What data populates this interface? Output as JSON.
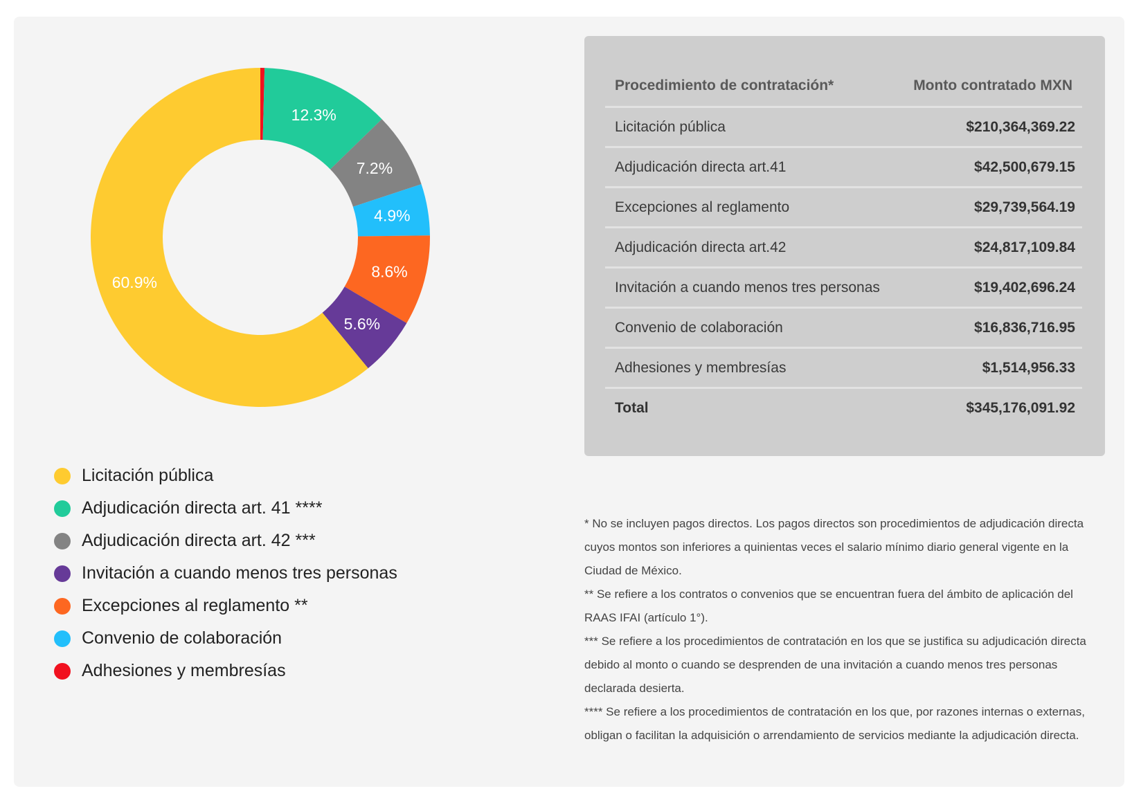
{
  "chart_data": {
    "type": "pie",
    "subtype": "donut",
    "title": "",
    "slices": [
      {
        "label": "Adhesiones y membresías",
        "value": 0.4,
        "color": "#f1111f",
        "show_label": false
      },
      {
        "label": "Adjudicación directa art. 41 ****",
        "value": 12.3,
        "color": "#21cb9a",
        "show_label": true
      },
      {
        "label": "Adjudicación directa art. 42 ***",
        "value": 7.2,
        "color": "#838383",
        "show_label": true
      },
      {
        "label": "Convenio de colaboración",
        "value": 4.9,
        "color": "#22bffb",
        "show_label": true
      },
      {
        "label": "Excepciones al reglamento **",
        "value": 8.6,
        "color": "#fd6721",
        "show_label": true
      },
      {
        "label": "Invitación a cuando menos tres personas",
        "value": 5.6,
        "color": "#663a98",
        "show_label": true
      },
      {
        "label": "Licitación pública",
        "value": 60.9,
        "color": "#fecb30",
        "show_label": true
      }
    ],
    "unit": "%",
    "legend_position": "bottom-left",
    "start_angle_deg": 0,
    "direction": "clockwise"
  },
  "legend": [
    {
      "label": "Licitación pública",
      "color": "#fecb30"
    },
    {
      "label": "Adjudicación directa art. 41 ****",
      "color": "#21cb9a"
    },
    {
      "label": "Adjudicación directa art. 42 ***",
      "color": "#838383"
    },
    {
      "label": "Invitación a cuando menos tres personas",
      "color": "#663a98"
    },
    {
      "label": "Excepciones al reglamento **",
      "color": "#fd6721"
    },
    {
      "label": "Convenio de colaboración",
      "color": "#22bffb"
    },
    {
      "label": "Adhesiones y membresías",
      "color": "#f1111f"
    }
  ],
  "table": {
    "headers": [
      "Procedimiento de contratación*",
      "Monto contratado MXN"
    ],
    "rows": [
      [
        "Licitación pública",
        "$210,364,369.22"
      ],
      [
        "Adjudicación directa art.41",
        "$42,500,679.15"
      ],
      [
        "Excepciones al reglamento",
        "$29,739,564.19"
      ],
      [
        "Adjudicación directa art.42",
        "$24,817,109.84"
      ],
      [
        "Invitación a cuando menos tres personas",
        "$19,402,696.24"
      ],
      [
        "Convenio de colaboración",
        "$16,836,716.95"
      ],
      [
        "Adhesiones y membresías",
        "$1,514,956.33"
      ]
    ],
    "total": [
      "Total",
      "$345,176,091.92"
    ]
  },
  "notes": [
    "* No se incluyen pagos directos. Los pagos directos son procedimientos de adjudicación directa cuyos montos son inferiores a quinientas veces el salario mínimo diario general vigente en la Ciudad de México.",
    "** Se refiere a los contratos o convenios que se encuentran fuera del ámbito de aplicación del RAAS IFAI (artículo 1°).",
    "*** Se refiere a los procedimientos de contratación en los que se justifica su adjudicación directa debido al monto o cuando se desprenden de una invitación a cuando menos tres personas declarada desierta.",
    "**** Se refiere a los procedimientos de contratación en los que, por razones internas o externas, obligan o facilitan la adquisición o arrendamiento de servicios mediante la adjudicación directa."
  ]
}
